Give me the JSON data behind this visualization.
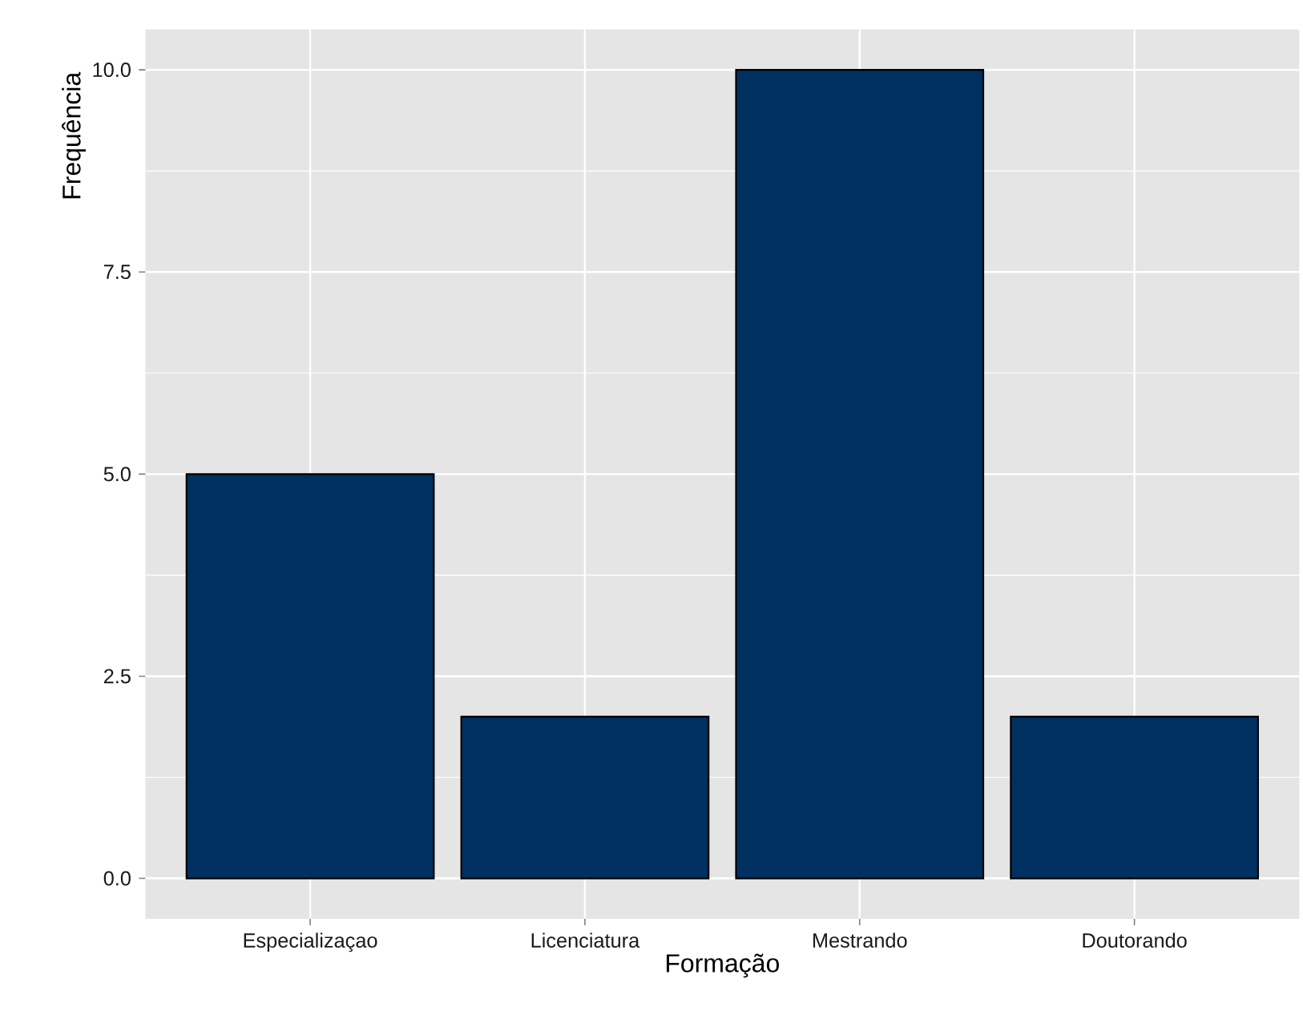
{
  "chart_data": {
    "type": "bar",
    "xlabel": "Formação",
    "ylabel": "Frequência",
    "categories": [
      "Especializaçao",
      "Licenciatura",
      "Mestrando",
      "Doutorando"
    ],
    "values": [
      5,
      2,
      10,
      2
    ],
    "color": "#00305f",
    "ylim": [
      -0.5,
      10.5
    ],
    "yticks": [
      {
        "value": 0,
        "label": "0.0"
      },
      {
        "value": 2.5,
        "label": "2.5"
      },
      {
        "value": 5,
        "label": "5.0"
      },
      {
        "value": 7.5,
        "label": "7.5"
      },
      {
        "value": 10,
        "label": "10.0"
      }
    ],
    "grid": true
  }
}
